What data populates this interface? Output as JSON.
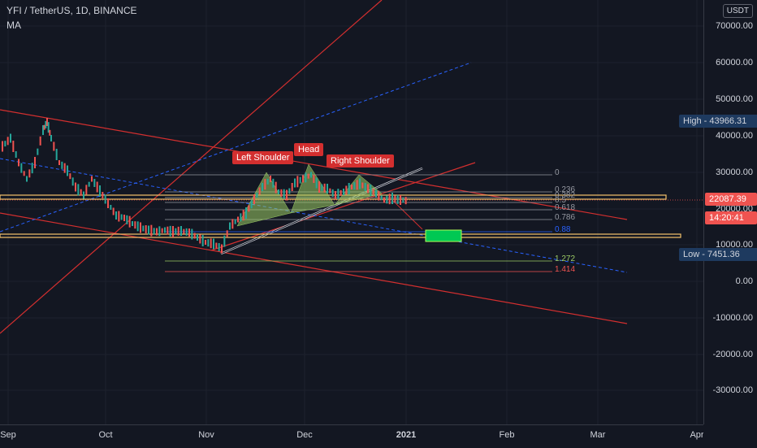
{
  "header": {
    "symbol": "YFI / TetherUS, 1D, BINANCE",
    "indicator": "MA"
  },
  "currency": "USDT",
  "price_axis": [
    "70000.00",
    "60000.00",
    "50000.00",
    "40000.00",
    "30000.00",
    "20000.00",
    "10000.00",
    "0.00",
    "-10000.00",
    "-20000.00",
    "-30000.00"
  ],
  "time_axis": [
    {
      "label": "Sep",
      "bold": false
    },
    {
      "label": "Oct",
      "bold": false
    },
    {
      "label": "Nov",
      "bold": false
    },
    {
      "label": "Dec",
      "bold": false
    },
    {
      "label": "2021",
      "bold": true
    },
    {
      "label": "Feb",
      "bold": false
    },
    {
      "label": "Mar",
      "bold": false
    },
    {
      "label": "Apr",
      "bold": false
    }
  ],
  "markers": {
    "high": "High - 43966.31",
    "low": "Low - 7451.36",
    "last_price": "22087.39",
    "countdown": "14:20:41"
  },
  "annotations": {
    "left_shoulder": "Left Shoulder",
    "head": "Head",
    "right_shoulder": "Right Shoulder"
  },
  "fib_levels": [
    "0",
    "0.236",
    "0.382",
    "0.5",
    "0.618",
    "0.786",
    "0.88",
    "1.272",
    "1.414"
  ],
  "colors": {
    "background": "#131722",
    "up": "#26a69a",
    "down": "#ef5350",
    "label_red": "#d32f2f",
    "accent_blue": "#1e3a5f"
  }
}
